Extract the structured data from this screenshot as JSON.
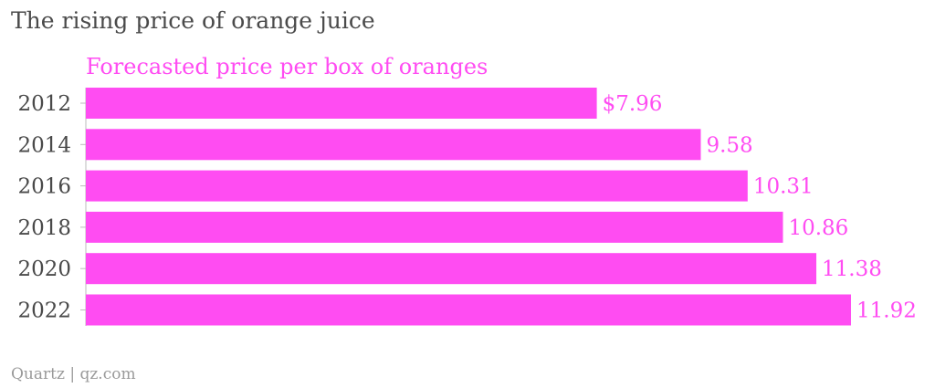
{
  "title": "The rising price of orange juice",
  "source": "Quartz | qz.com",
  "colors": {
    "bar": "#ff4cf2",
    "label": "#ff4cf2",
    "title": "#4a4a4a",
    "tick": "#4a4a4a",
    "source": "#9a9a9a",
    "axis": "#bbbbbb"
  },
  "chart_data": {
    "type": "bar",
    "orientation": "horizontal",
    "title": "The rising price of orange juice",
    "categories": [
      "2012",
      "2014",
      "2016",
      "2018",
      "2020",
      "2022"
    ],
    "series": [
      {
        "name": "Forecasted price per box of oranges",
        "values": [
          7.96,
          9.58,
          10.31,
          10.86,
          11.38,
          11.92
        ]
      }
    ],
    "data_labels": [
      "$7.96",
      "9.58",
      "10.31",
      "10.86",
      "11.38",
      "11.92"
    ],
    "xlim": [
      0,
      11.92
    ],
    "grid": false,
    "legend": "top-left"
  }
}
